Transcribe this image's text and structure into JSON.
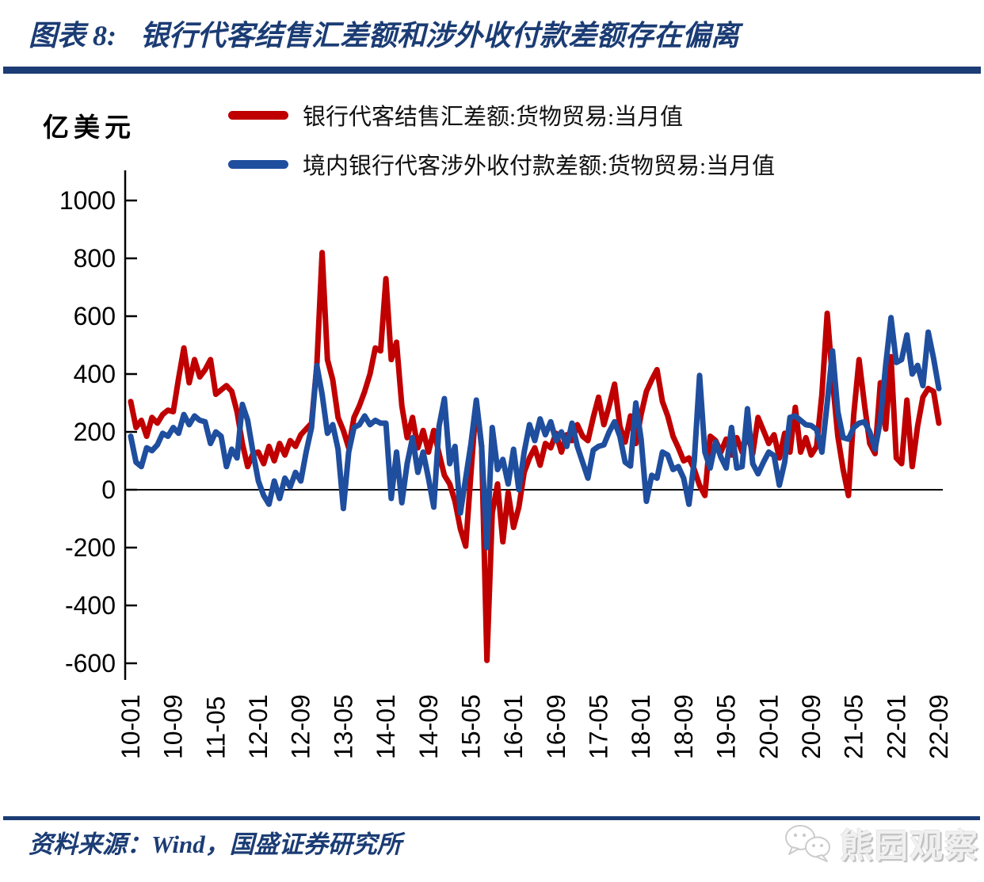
{
  "header": {
    "chart_label": "图表 8:",
    "title": "银行代客结售汇差额和涉外收付款差额存在偏离"
  },
  "y_axis_unit": "亿美元",
  "legend": [
    {
      "label": "银行代客结售汇差额:货物贸易:当月值",
      "color": "#c00000"
    },
    {
      "label": "境内银行代客涉外收付款差额:货物贸易:当月值",
      "color": "#1f4e9e"
    }
  ],
  "footer": {
    "source": "资料来源：Wind，国盛证券研究所",
    "watermark": "熊园观察"
  },
  "chart_data": {
    "type": "line",
    "title": "银行代客结售汇差额和涉外收付款差额存在偏离",
    "ylabel": "亿美元",
    "ylim": [
      -600,
      1000
    ],
    "y_ticks": [
      1000,
      800,
      600,
      400,
      200,
      0,
      -200,
      -400,
      -600
    ],
    "x_start": "2010-01",
    "x_end": "2022-09",
    "frequency": "monthly",
    "x_tick_step_months": 8,
    "x_tick_labels": [
      "10-01",
      "10-09",
      "11-05",
      "12-01",
      "12-09",
      "13-05",
      "14-01",
      "14-09",
      "15-05",
      "16-01",
      "16-09",
      "17-05",
      "18-01",
      "18-09",
      "19-05",
      "20-01",
      "20-09",
      "21-05",
      "22-01",
      "22-09"
    ],
    "grid": false,
    "legend_position": "top",
    "series": [
      {
        "name": "银行代客结售汇差额:货物贸易:当月值",
        "color": "#c00000",
        "values": [
          305,
          215,
          240,
          185,
          250,
          230,
          260,
          275,
          270,
          385,
          490,
          370,
          450,
          390,
          415,
          450,
          330,
          345,
          360,
          340,
          270,
          160,
          80,
          125,
          130,
          90,
          150,
          100,
          160,
          120,
          170,
          150,
          190,
          210,
          230,
          430,
          820,
          450,
          380,
          250,
          205,
          145,
          250,
          290,
          340,
          400,
          490,
          480,
          730,
          450,
          510,
          290,
          180,
          250,
          145,
          205,
          130,
          205,
          125,
          50,
          20,
          -40,
          -135,
          -195,
          60,
          305,
          150,
          -590,
          -80,
          20,
          -180,
          -10,
          -130,
          -60,
          60,
          110,
          145,
          85,
          160,
          145,
          195,
          130,
          190,
          170,
          225,
          185,
          170,
          250,
          320,
          225,
          290,
          365,
          220,
          165,
          255,
          160,
          260,
          340,
          380,
          415,
          305,
          255,
          185,
          145,
          100,
          110,
          70,
          15,
          -20,
          185,
          170,
          130,
          175,
          120,
          180,
          130,
          195,
          125,
          250,
          205,
          160,
          190,
          110,
          195,
          130,
          285,
          130,
          180,
          120,
          150,
          330,
          610,
          380,
          185,
          70,
          -20,
          260,
          450,
          295,
          160,
          125,
          370,
          210,
          460,
          110,
          90,
          310,
          80,
          220,
          320,
          350,
          340,
          230
        ]
      },
      {
        "name": "境内银行代客涉外收付款差额:货物贸易:当月值",
        "color": "#1f4e9e",
        "values": [
          185,
          95,
          80,
          145,
          135,
          155,
          195,
          185,
          215,
          195,
          260,
          225,
          255,
          240,
          235,
          160,
          200,
          185,
          80,
          140,
          110,
          295,
          240,
          130,
          30,
          -20,
          -50,
          30,
          -30,
          40,
          10,
          60,
          30,
          130,
          215,
          430,
          330,
          195,
          225,
          140,
          -65,
          130,
          215,
          225,
          255,
          225,
          240,
          230,
          230,
          -30,
          130,
          -45,
          90,
          180,
          60,
          130,
          40,
          -60,
          220,
          315,
          90,
          150,
          -80,
          40,
          160,
          310,
          150,
          -200,
          215,
          70,
          105,
          20,
          140,
          0,
          130,
          225,
          170,
          245,
          190,
          235,
          170,
          200,
          150,
          230,
          150,
          95,
          40,
          137,
          150,
          155,
          200,
          235,
          185,
          95,
          82,
          300,
          175,
          -40,
          50,
          40,
          130,
          120,
          70,
          80,
          40,
          -50,
          100,
          395,
          130,
          75,
          165,
          113,
          75,
          215,
          75,
          80,
          280,
          90,
          55,
          95,
          130,
          118,
          16,
          95,
          250,
          255,
          240,
          225,
          222,
          208,
          130,
          300,
          480,
          270,
          180,
          175,
          215,
          230,
          235,
          200,
          140,
          240,
          430,
          595,
          440,
          450,
          535,
          400,
          430,
          360,
          545,
          455,
          350
        ]
      }
    ]
  }
}
